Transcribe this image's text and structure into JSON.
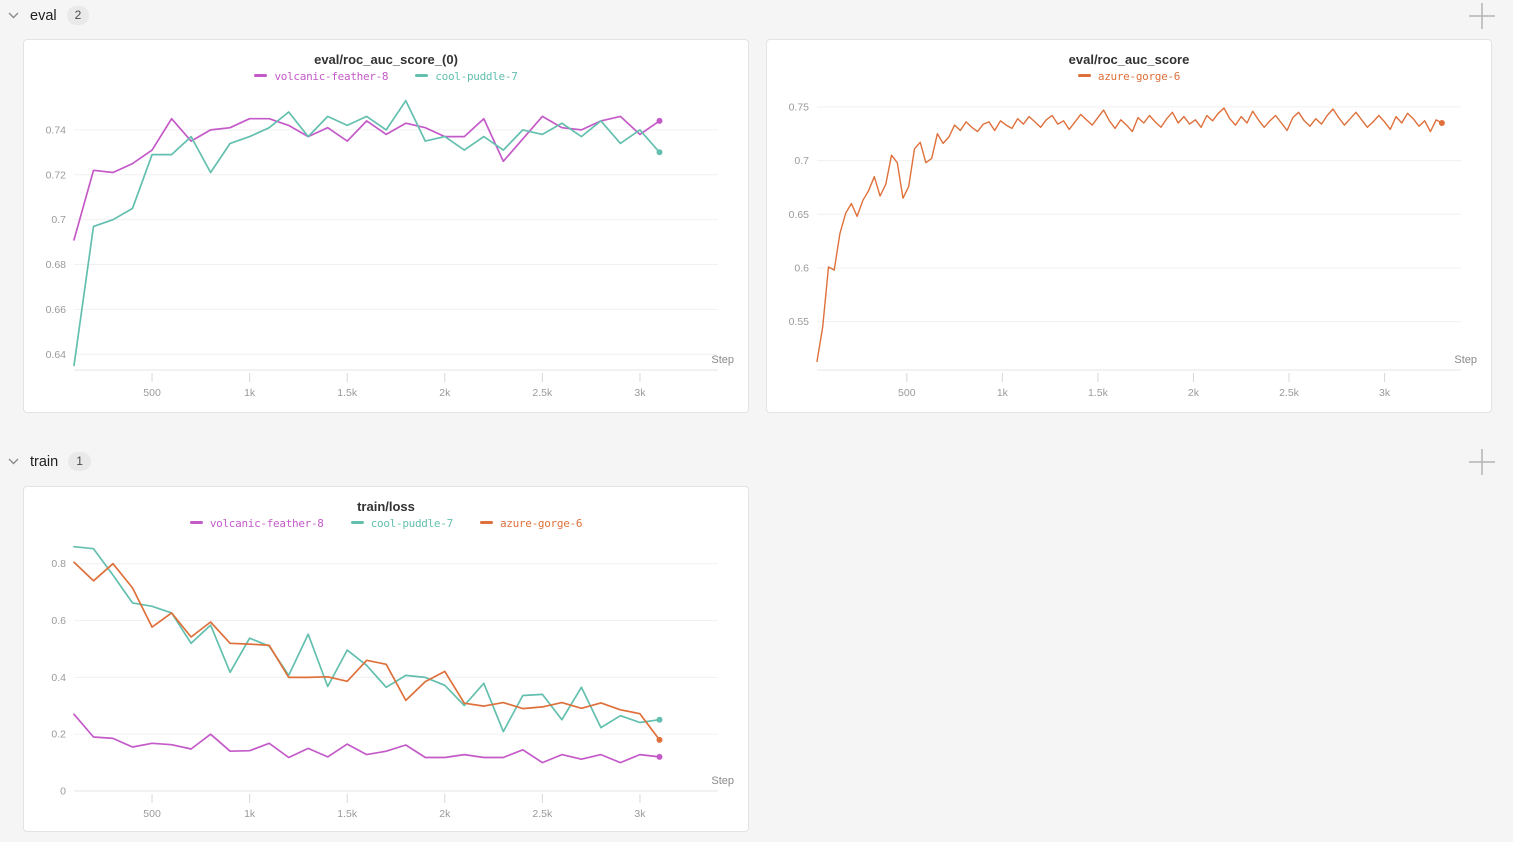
{
  "page": {
    "background": "#f5f5f5"
  },
  "sections": [
    {
      "label": "eval",
      "count": "2"
    },
    {
      "label": "train",
      "count": "1"
    }
  ],
  "icons": {
    "section_chevron": "chevron-down",
    "add_panel": "plus"
  },
  "colors": {
    "magenta": "#C45AC8",
    "teal": "#63BFAE",
    "orange": "#DE703B"
  },
  "chart_data": [
    {
      "type": "line",
      "title": "eval/roc_auc_score_(0)",
      "xlabel": "Step",
      "grid": true,
      "legend_position": "top",
      "xlim": [
        100,
        3400
      ],
      "ylim": [
        0.633,
        0.756
      ],
      "stroke_width": 1.7,
      "x_ticks": [
        {
          "value": 500,
          "label": "500"
        },
        {
          "value": 1000,
          "label": "1k"
        },
        {
          "value": 1500,
          "label": "1.5k"
        },
        {
          "value": 2000,
          "label": "2k"
        },
        {
          "value": 2500,
          "label": "2.5k"
        },
        {
          "value": 3000,
          "label": "3k"
        }
      ],
      "y_ticks": [
        {
          "value": 0.64,
          "label": "0.64"
        },
        {
          "value": 0.66,
          "label": "0.66"
        },
        {
          "value": 0.68,
          "label": "0.68"
        },
        {
          "value": 0.7,
          "label": "0.7"
        },
        {
          "value": 0.72,
          "label": "0.72"
        },
        {
          "value": 0.74,
          "label": "0.74"
        }
      ],
      "x": {
        "values": [
          100,
          200,
          300,
          400,
          500,
          600,
          700,
          800,
          900,
          1000,
          1100,
          1200,
          1300,
          1400,
          1500,
          1600,
          1700,
          1800,
          1900,
          2000,
          2100,
          2200,
          2300,
          2400,
          2500,
          2600,
          2700,
          2800,
          2900,
          3000,
          3100
        ]
      },
      "series": [
        {
          "name": "volcanic-feather-8",
          "color": "#C45AC8",
          "values": [
            0.691,
            0.722,
            0.721,
            0.725,
            0.731,
            0.745,
            0.735,
            0.74,
            0.741,
            0.745,
            0.745,
            0.742,
            0.737,
            0.741,
            0.735,
            0.744,
            0.738,
            0.743,
            0.741,
            0.737,
            0.737,
            0.745,
            0.726,
            0.736,
            0.746,
            0.741,
            0.74,
            0.744,
            0.746,
            0.738,
            0.744
          ]
        },
        {
          "name": "cool-puddle-7",
          "color": "#63BFAE",
          "values": [
            0.635,
            0.697,
            0.7,
            0.705,
            0.729,
            0.729,
            0.737,
            0.721,
            0.734,
            0.737,
            0.741,
            0.748,
            0.737,
            0.746,
            0.742,
            0.746,
            0.74,
            0.753,
            0.735,
            0.737,
            0.731,
            0.737,
            0.731,
            0.74,
            0.738,
            0.743,
            0.737,
            0.744,
            0.734,
            0.74,
            0.73
          ]
        }
      ]
    },
    {
      "type": "line",
      "title": "eval/roc_auc_score",
      "xlabel": "Step",
      "grid": true,
      "legend_position": "top",
      "xlim": [
        30,
        3400
      ],
      "ylim": [
        0.505,
        0.762
      ],
      "stroke_width": 1.4,
      "x_ticks": [
        {
          "value": 500,
          "label": "500"
        },
        {
          "value": 1000,
          "label": "1k"
        },
        {
          "value": 1500,
          "label": "1.5k"
        },
        {
          "value": 2000,
          "label": "2k"
        },
        {
          "value": 2500,
          "label": "2.5k"
        },
        {
          "value": 3000,
          "label": "3k"
        }
      ],
      "y_ticks": [
        {
          "value": 0.55,
          "label": "0.55"
        },
        {
          "value": 0.6,
          "label": "0.6"
        },
        {
          "value": 0.65,
          "label": "0.65"
        },
        {
          "value": 0.7,
          "label": "0.7"
        },
        {
          "value": 0.75,
          "label": "0.75"
        }
      ],
      "x": {
        "start": 30,
        "step": 30,
        "count": 110
      },
      "series": [
        {
          "name": "azure-gorge-6",
          "color": "#DE703B",
          "values": [
            0.513,
            0.545,
            0.601,
            0.598,
            0.632,
            0.651,
            0.66,
            0.648,
            0.663,
            0.672,
            0.685,
            0.667,
            0.678,
            0.705,
            0.698,
            0.665,
            0.676,
            0.711,
            0.717,
            0.698,
            0.702,
            0.725,
            0.716,
            0.722,
            0.733,
            0.728,
            0.736,
            0.731,
            0.727,
            0.734,
            0.736,
            0.728,
            0.737,
            0.733,
            0.73,
            0.739,
            0.734,
            0.741,
            0.736,
            0.731,
            0.738,
            0.742,
            0.734,
            0.737,
            0.729,
            0.736,
            0.743,
            0.738,
            0.733,
            0.74,
            0.747,
            0.737,
            0.73,
            0.738,
            0.733,
            0.727,
            0.74,
            0.735,
            0.742,
            0.736,
            0.731,
            0.739,
            0.745,
            0.735,
            0.741,
            0.734,
            0.738,
            0.731,
            0.742,
            0.737,
            0.744,
            0.749,
            0.739,
            0.733,
            0.741,
            0.735,
            0.746,
            0.738,
            0.731,
            0.737,
            0.742,
            0.735,
            0.728,
            0.74,
            0.745,
            0.737,
            0.732,
            0.739,
            0.734,
            0.742,
            0.748,
            0.74,
            0.733,
            0.739,
            0.745,
            0.738,
            0.731,
            0.736,
            0.742,
            0.736,
            0.729,
            0.741,
            0.735,
            0.744,
            0.739,
            0.732,
            0.737,
            0.727,
            0.738,
            0.735
          ]
        }
      ]
    },
    {
      "type": "line",
      "title": "train/loss",
      "xlabel": "Step",
      "grid": true,
      "legend_position": "top",
      "xlim": [
        100,
        3400
      ],
      "ylim": [
        0,
        0.88
      ],
      "stroke_width": 1.7,
      "x_ticks": [
        {
          "value": 500,
          "label": "500"
        },
        {
          "value": 1000,
          "label": "1k"
        },
        {
          "value": 1500,
          "label": "1.5k"
        },
        {
          "value": 2000,
          "label": "2k"
        },
        {
          "value": 2500,
          "label": "2.5k"
        },
        {
          "value": 3000,
          "label": "3k"
        }
      ],
      "y_ticks": [
        {
          "value": 0,
          "label": "0"
        },
        {
          "value": 0.2,
          "label": "0.2"
        },
        {
          "value": 0.4,
          "label": "0.4"
        },
        {
          "value": 0.6,
          "label": "0.6"
        },
        {
          "value": 0.8,
          "label": "0.8"
        }
      ],
      "x": {
        "values": [
          100,
          200,
          300,
          400,
          500,
          600,
          700,
          800,
          900,
          1000,
          1100,
          1200,
          1300,
          1400,
          1500,
          1600,
          1700,
          1800,
          1900,
          2000,
          2100,
          2200,
          2300,
          2400,
          2500,
          2600,
          2700,
          2800,
          2900,
          3000,
          3100
        ]
      },
      "series": [
        {
          "name": "volcanic-feather-8",
          "color": "#C45AC8",
          "values": [
            0.27,
            0.19,
            0.185,
            0.155,
            0.168,
            0.163,
            0.148,
            0.2,
            0.14,
            0.142,
            0.168,
            0.118,
            0.15,
            0.12,
            0.165,
            0.128,
            0.14,
            0.162,
            0.118,
            0.118,
            0.128,
            0.118,
            0.118,
            0.145,
            0.1,
            0.128,
            0.112,
            0.128,
            0.1,
            0.128,
            0.12
          ]
        },
        {
          "name": "cool-puddle-7",
          "color": "#63BFAE",
          "values": [
            0.86,
            0.853,
            0.76,
            0.662,
            0.65,
            0.627,
            0.52,
            0.584,
            0.418,
            0.538,
            0.51,
            0.407,
            0.552,
            0.368,
            0.496,
            0.442,
            0.365,
            0.407,
            0.4,
            0.372,
            0.301,
            0.379,
            0.209,
            0.336,
            0.34,
            0.251,
            0.365,
            0.223,
            0.265,
            0.241,
            0.251
          ]
        },
        {
          "name": "azure-gorge-6",
          "color": "#DE703B",
          "values": [
            0.805,
            0.74,
            0.8,
            0.715,
            0.577,
            0.627,
            0.542,
            0.595,
            0.52,
            0.517,
            0.513,
            0.4,
            0.4,
            0.402,
            0.386,
            0.46,
            0.446,
            0.319,
            0.385,
            0.421,
            0.309,
            0.299,
            0.311,
            0.29,
            0.296,
            0.311,
            0.291,
            0.31,
            0.286,
            0.272,
            0.18
          ]
        }
      ]
    }
  ]
}
